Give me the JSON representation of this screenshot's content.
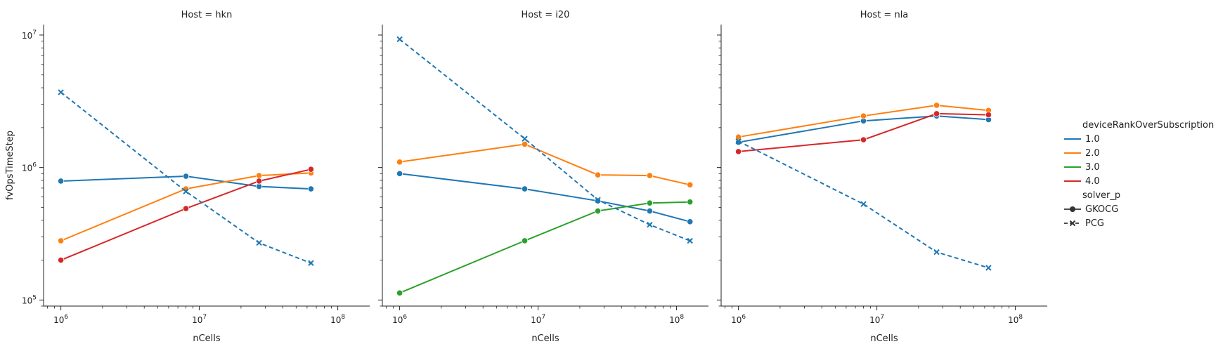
{
  "figure": {
    "xlabel": "nCells",
    "ylabel": "fvOpsTimeStep",
    "panel_titles": [
      "Host = hkn",
      "Host = i20",
      "Host = nla"
    ]
  },
  "legend": {
    "hue_title": "deviceRankOverSubscription",
    "hue_items": [
      {
        "label": "1.0",
        "color": "#1f77b4"
      },
      {
        "label": "2.0",
        "color": "#ff7f0e"
      },
      {
        "label": "3.0",
        "color": "#2ca02c"
      },
      {
        "label": "4.0",
        "color": "#d62728"
      }
    ],
    "style_title": "solver_p",
    "style_items": [
      {
        "label": "GKOCG",
        "marker": "circle",
        "dash": "solid"
      },
      {
        "label": "PCG",
        "marker": "x",
        "dash": "dashed"
      }
    ]
  },
  "chart_data": [
    {
      "type": "line",
      "title": "Host = hkn",
      "xlabel": "nCells",
      "ylabel": "fvOpsTimeStep",
      "xscale": "log",
      "yscale": "log",
      "xlim": [
        750000,
        170000000
      ],
      "ylim": [
        90000,
        12000000
      ],
      "x_ticks": [
        "10^6",
        "10^7",
        "10^8"
      ],
      "y_ticks": [
        "10^5",
        "10^6",
        "10^7"
      ],
      "series": [
        {
          "name": "1.0",
          "solver": "GKOCG",
          "color": "#1f77b4",
          "x": [
            1000000,
            8000000,
            27000000,
            64000000
          ],
          "y": [
            790000,
            860000,
            720000,
            690000
          ]
        },
        {
          "name": "2.0",
          "solver": "GKOCG",
          "color": "#ff7f0e",
          "x": [
            1000000,
            8000000,
            27000000,
            64000000
          ],
          "y": [
            280000,
            690000,
            870000,
            910000
          ]
        },
        {
          "name": "4.0",
          "solver": "GKOCG",
          "color": "#d62728",
          "x": [
            1000000,
            8000000,
            27000000,
            64000000
          ],
          "y": [
            200000,
            490000,
            790000,
            970000
          ]
        },
        {
          "name": "1.0",
          "solver": "PCG",
          "color": "#1f77b4",
          "x": [
            1000000,
            8000000,
            27000000,
            64000000
          ],
          "y": [
            3700000,
            660000,
            270000,
            190000
          ]
        }
      ]
    },
    {
      "type": "line",
      "title": "Host = i20",
      "xlabel": "nCells",
      "xscale": "log",
      "yscale": "log",
      "xlim": [
        750000,
        170000000
      ],
      "ylim": [
        90000,
        12000000
      ],
      "x_ticks": [
        "10^6",
        "10^7",
        "10^8"
      ],
      "series": [
        {
          "name": "1.0",
          "solver": "GKOCG",
          "color": "#1f77b4",
          "x": [
            1000000,
            8000000,
            27000000,
            64000000,
            125000000
          ],
          "y": [
            900000,
            690000,
            560000,
            470000,
            390000
          ]
        },
        {
          "name": "2.0",
          "solver": "GKOCG",
          "color": "#ff7f0e",
          "x": [
            1000000,
            8000000,
            27000000,
            64000000,
            125000000
          ],
          "y": [
            1100000,
            1500000,
            880000,
            870000,
            740000
          ]
        },
        {
          "name": "3.0",
          "solver": "GKOCG",
          "color": "#2ca02c",
          "x": [
            1000000,
            8000000,
            27000000,
            64000000,
            125000000
          ],
          "y": [
            113000,
            280000,
            470000,
            540000,
            550000
          ]
        },
        {
          "name": "1.0",
          "solver": "PCG",
          "color": "#1f77b4",
          "x": [
            1000000,
            8000000,
            27000000,
            64000000,
            125000000
          ],
          "y": [
            9300000,
            1650000,
            570000,
            370000,
            280000
          ]
        }
      ]
    },
    {
      "type": "line",
      "title": "Host = nla",
      "xlabel": "nCells",
      "xscale": "log",
      "yscale": "log",
      "xlim": [
        750000,
        170000000
      ],
      "ylim": [
        90000,
        12000000
      ],
      "x_ticks": [
        "10^6",
        "10^7",
        "10^8"
      ],
      "series": [
        {
          "name": "1.0",
          "solver": "GKOCG",
          "color": "#1f77b4",
          "x": [
            1000000,
            8000000,
            27000000,
            64000000
          ],
          "y": [
            1550000,
            2250000,
            2450000,
            2300000
          ]
        },
        {
          "name": "2.0",
          "solver": "GKOCG",
          "color": "#ff7f0e",
          "x": [
            1000000,
            8000000,
            27000000,
            64000000
          ],
          "y": [
            1700000,
            2450000,
            2950000,
            2700000
          ]
        },
        {
          "name": "4.0",
          "solver": "GKOCG",
          "color": "#d62728",
          "x": [
            1000000,
            8000000,
            27000000,
            64000000
          ],
          "y": [
            1320000,
            1620000,
            2550000,
            2500000
          ]
        },
        {
          "name": "1.0",
          "solver": "PCG",
          "color": "#1f77b4",
          "x": [
            1000000,
            8000000,
            27000000,
            64000000
          ],
          "y": [
            1580000,
            530000,
            230000,
            175000
          ]
        }
      ]
    }
  ]
}
